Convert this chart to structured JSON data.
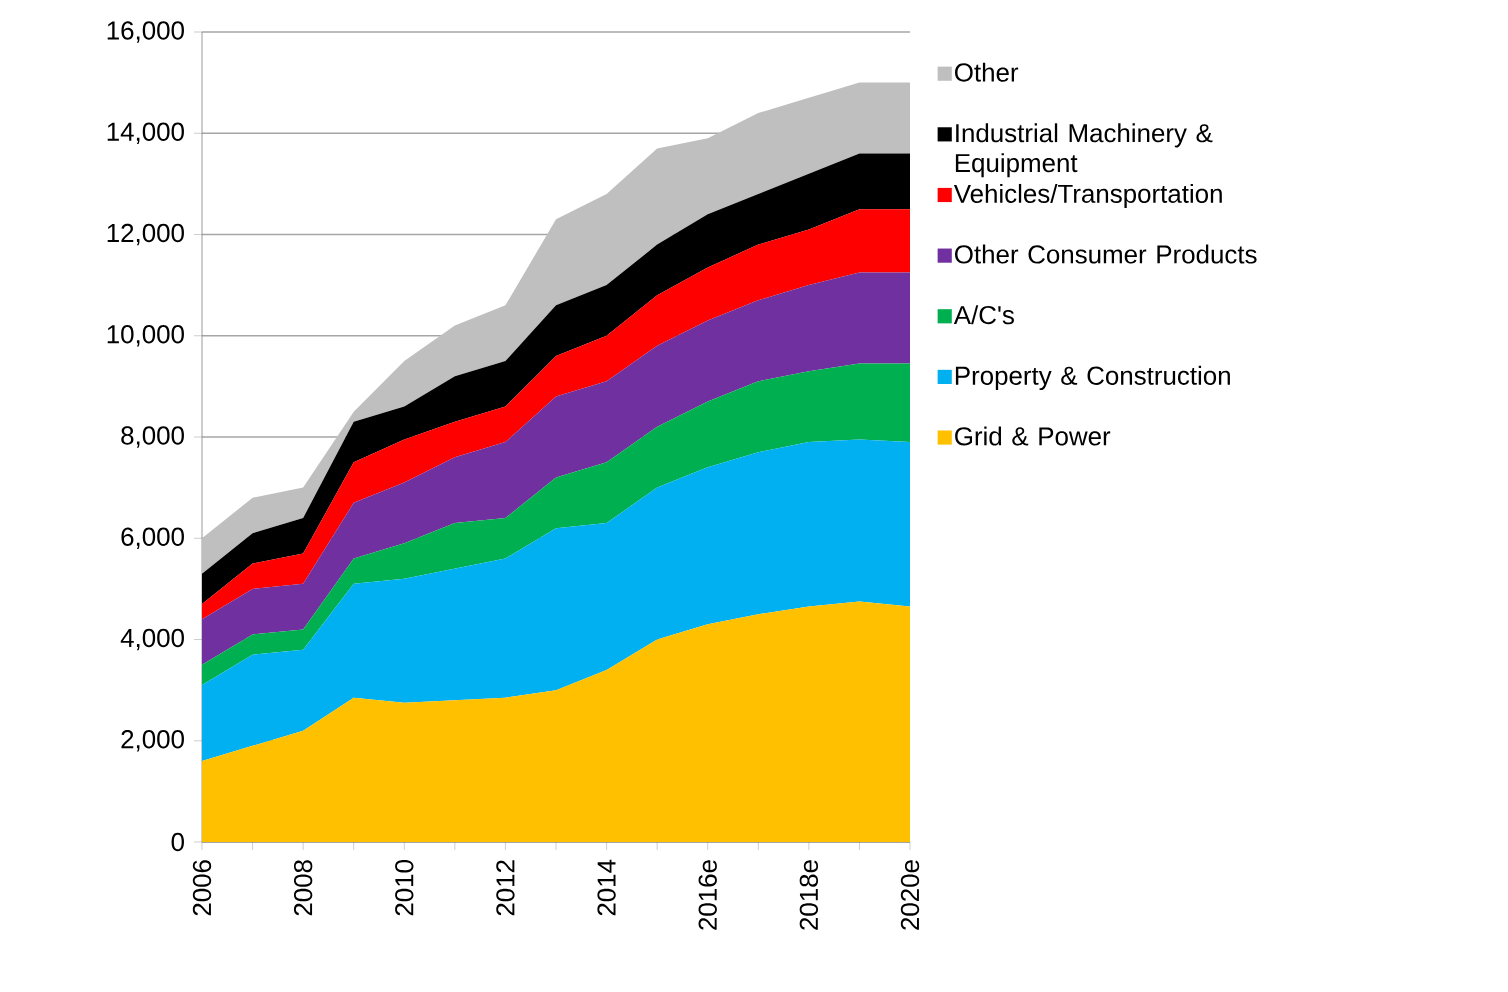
{
  "chart_data": {
    "type": "area",
    "stacked": true,
    "categories": [
      "2006",
      null,
      "2008",
      null,
      "2010",
      null,
      "2012",
      null,
      "2014",
      null,
      "2016e",
      null,
      "2018e",
      null,
      "2020e"
    ],
    "series": [
      {
        "name": "Grid & Power",
        "color": "#ffc000",
        "values": [
          1600,
          1900,
          2200,
          2850,
          2750,
          2800,
          2850,
          3000,
          3400,
          4000,
          4300,
          4500,
          4650,
          4750,
          4650
        ]
      },
      {
        "name": "Property & Construction",
        "color": "#00b0f0",
        "values": [
          1500,
          1800,
          1600,
          2250,
          2450,
          2600,
          2750,
          3200,
          2900,
          3000,
          3100,
          3200,
          3250,
          3200,
          3250
        ]
      },
      {
        "name": "A/C's",
        "color": "#00b050",
        "values": [
          400,
          400,
          400,
          500,
          700,
          900,
          800,
          1000,
          1200,
          1200,
          1300,
          1400,
          1400,
          1500,
          1550
        ]
      },
      {
        "name": "Other Consumer Products",
        "color": "#7030a0",
        "values": [
          900,
          900,
          900,
          1100,
          1200,
          1300,
          1500,
          1600,
          1600,
          1600,
          1600,
          1600,
          1700,
          1800,
          1800
        ]
      },
      {
        "name": "Vehicles/Transportation",
        "color": "#ff0000",
        "values": [
          300,
          500,
          600,
          800,
          850,
          700,
          700,
          800,
          900,
          1000,
          1050,
          1100,
          1100,
          1250,
          1250
        ]
      },
      {
        "name": "Industrial Machinery & Equipment",
        "color": "#000000",
        "values": [
          600,
          600,
          700,
          800,
          650,
          900,
          900,
          1000,
          1000,
          1000,
          1050,
          1000,
          1100,
          1100,
          1100
        ]
      },
      {
        "name": "Other",
        "color": "#bfbfbf",
        "values": [
          700,
          700,
          600,
          200,
          900,
          1000,
          1100,
          1700,
          1800,
          1900,
          1500,
          1600,
          1500,
          1400,
          1400
        ]
      }
    ],
    "ylim": [
      0,
      16000
    ],
    "yticks": [
      {
        "value": 0,
        "label": "0"
      },
      {
        "value": 2000,
        "label": "2,000"
      },
      {
        "value": 4000,
        "label": "4,000"
      },
      {
        "value": 6000,
        "label": "6,000"
      },
      {
        "value": 8000,
        "label": "8,000"
      },
      {
        "value": 10000,
        "label": "10,000"
      },
      {
        "value": 12000,
        "label": "12,000"
      },
      {
        "value": 14000,
        "label": "14,000"
      },
      {
        "value": 16000,
        "label": "16,000"
      }
    ],
    "grid": "y",
    "legend": "right"
  }
}
